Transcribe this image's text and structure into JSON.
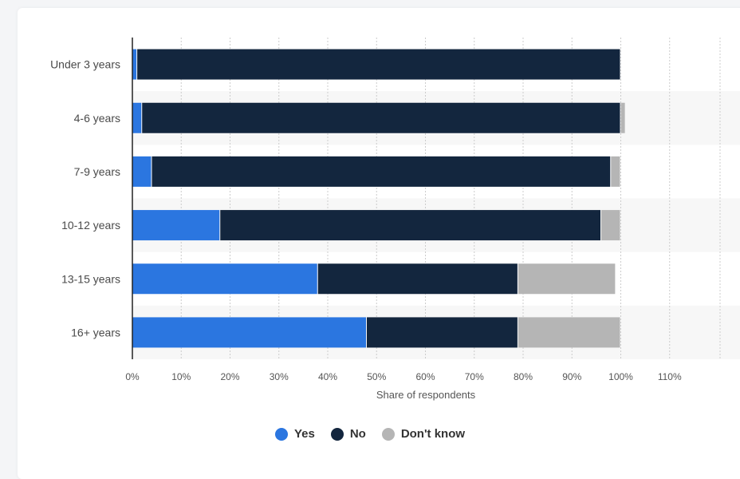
{
  "chart_data": {
    "type": "bar",
    "orientation": "horizontal",
    "stacked": true,
    "categories": [
      "Under 3 years",
      "4-6 years",
      "7-9 years",
      "10-12 years",
      "13-15 years",
      "16+ years"
    ],
    "series": [
      {
        "name": "Yes",
        "color": "#2b76e0",
        "values": [
          1,
          2,
          4,
          18,
          38,
          48
        ]
      },
      {
        "name": "No",
        "color": "#13263e",
        "values": [
          99,
          98,
          94,
          78,
          41,
          31
        ]
      },
      {
        "name": "Don't know",
        "color": "#b5b5b5",
        "values": [
          0,
          1,
          2,
          4,
          20,
          21
        ]
      }
    ],
    "xlim": [
      0,
      120
    ],
    "xticks": [
      "0%",
      "10%",
      "20%",
      "30%",
      "40%",
      "50%",
      "60%",
      "70%",
      "80%",
      "90%",
      "100%",
      "110%"
    ],
    "xlabel": "Share of respondents",
    "grid": true,
    "legend_position": "bottom"
  }
}
